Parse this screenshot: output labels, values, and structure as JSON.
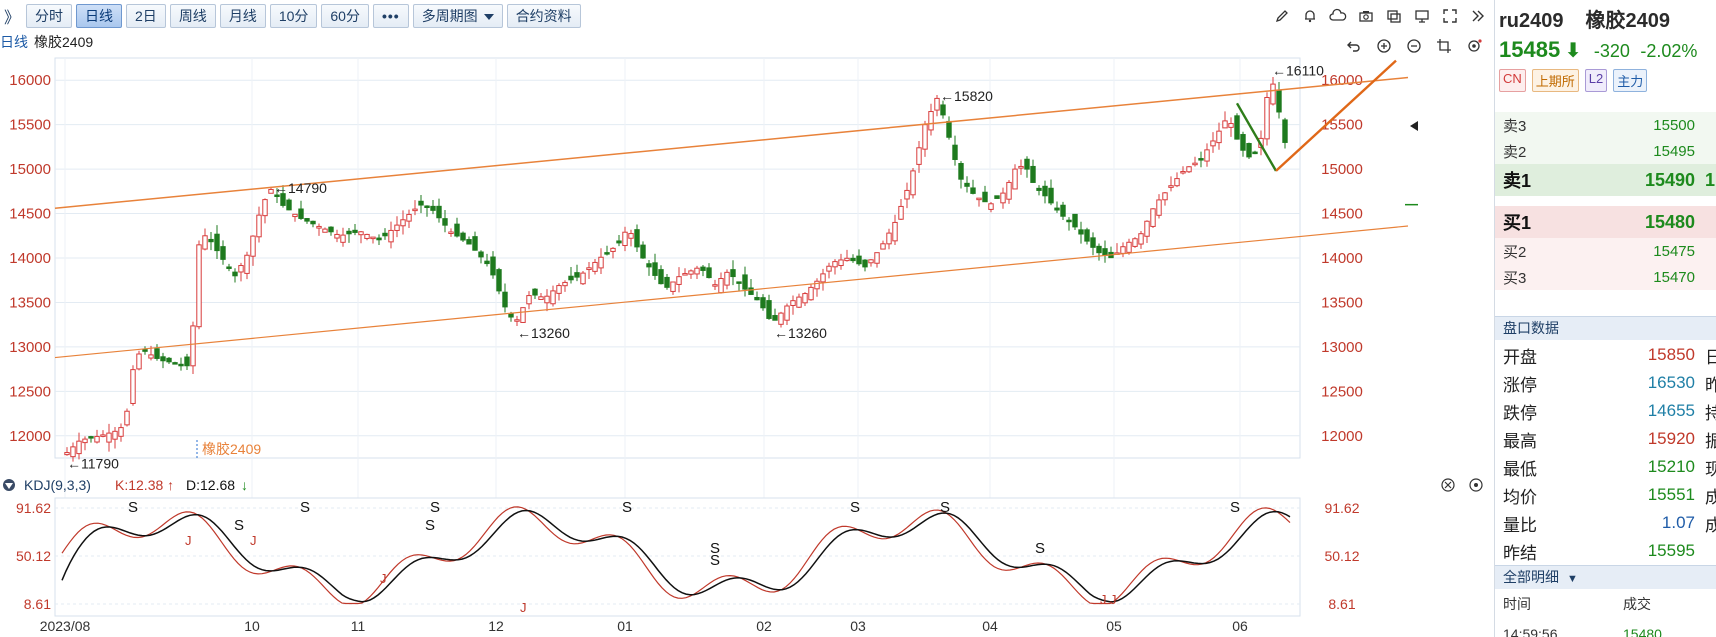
{
  "toolbar": {
    "expand_glyph": "》",
    "buttons": [
      {
        "label": "分时",
        "active": false
      },
      {
        "label": "日线",
        "active": true
      },
      {
        "label": "2日",
        "active": false
      },
      {
        "label": "周线",
        "active": false
      },
      {
        "label": "月线",
        "active": false
      },
      {
        "label": "10分",
        "active": false
      },
      {
        "label": "60分",
        "active": false
      }
    ],
    "more_label": "•••",
    "multi_period_label": "多周期图",
    "contract_info_label": "合约资料",
    "right_icons": [
      "pencil-icon",
      "bell-icon",
      "cloud-icon",
      "camera-icon",
      "layout-icon",
      "monitor-icon",
      "fullscreen-icon",
      "collapse-icon"
    ]
  },
  "chart_sub": {
    "period": "日线",
    "name": "橡胶2409"
  },
  "chart_tools": [
    "undo-icon",
    "zoom-in-icon",
    "zoom-out-icon",
    "crop-icon",
    "settings-icon"
  ],
  "chart_data": {
    "type": "candlestick",
    "title": "",
    "x_ticks": [
      "2023/08",
      "10",
      "11",
      "12",
      "01",
      "02",
      "03",
      "04",
      "05",
      "06"
    ],
    "y_ticks": [
      12000,
      12500,
      13000,
      13500,
      14000,
      14500,
      15000,
      15500,
      16000
    ],
    "ylim": [
      11750,
      16250
    ],
    "annotations": [
      {
        "text": "←11790",
        "value": 11790
      },
      {
        "text": "←14790",
        "value": 14790
      },
      {
        "text": "←13260",
        "value": 13260
      },
      {
        "text": "←13260",
        "value": 13260
      },
      {
        "text": "←15820",
        "value": 15820
      },
      {
        "text": "←16110",
        "value": 16110
      }
    ],
    "contract_marker": "橡胶2409",
    "up_color": "#d83c3c",
    "down_color": "#1e7a1e",
    "trendline_color": "#e8823a",
    "grid": true,
    "indicator": {
      "name": "KDJ(9,3,3)",
      "k_label": "K:12.38",
      "d_label": "D:12.68",
      "y_ticks": [
        8.61,
        50.12,
        91.62
      ],
      "k_color": "#c0392b",
      "d_color": "#111111",
      "signal_letters": [
        "S",
        "J"
      ]
    }
  },
  "right_panel": {
    "code": "ru2409",
    "name": "橡胶2409",
    "last": "15485",
    "change": "-320",
    "change_pct": "-2.02%",
    "tags": [
      "CN",
      "上期所",
      "L2",
      "主力"
    ],
    "asks": [
      {
        "label": "卖3",
        "price": "15500"
      },
      {
        "label": "卖2",
        "price": "15495"
      },
      {
        "label": "卖1",
        "price": "15490",
        "tail": "1"
      }
    ],
    "bids": [
      {
        "label": "买1",
        "price": "15480"
      },
      {
        "label": "买2",
        "price": "15475"
      },
      {
        "label": "买3",
        "price": "15470"
      }
    ],
    "stats_title": "盘口数据",
    "stats": [
      {
        "label": "开盘",
        "value": "15850",
        "color": "#c0392b",
        "tail": "日"
      },
      {
        "label": "涨停",
        "value": "16530",
        "color": "#1f7fa6",
        "tail": "昨"
      },
      {
        "label": "跌停",
        "value": "14655",
        "color": "#1f7fa6",
        "tail": "持"
      },
      {
        "label": "最高",
        "value": "15920",
        "color": "#c0392b",
        "tail": "振"
      },
      {
        "label": "最低",
        "value": "15210",
        "color": "#1d8a1d",
        "tail": "现"
      },
      {
        "label": "均价",
        "value": "15551",
        "color": "#1d8a1d",
        "tail": "成"
      },
      {
        "label": "量比",
        "value": "1.07",
        "color": "#1f5ca8",
        "tail": "成"
      },
      {
        "label": "昨结",
        "value": "15595",
        "color": "#1d8a1d",
        "tail": ""
      }
    ],
    "detail_title": "全部明细",
    "detail_cols": [
      "时间",
      "成交"
    ],
    "detail_row": [
      "14:59:56",
      "15480"
    ]
  }
}
